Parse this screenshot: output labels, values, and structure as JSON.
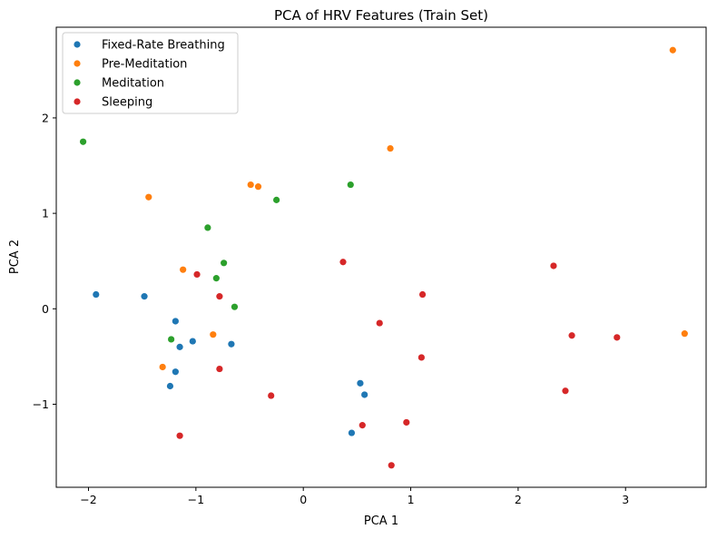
{
  "chart_data": {
    "type": "scatter",
    "title": "PCA of HRV Features (Train Set)",
    "xlabel": "PCA 1",
    "ylabel": "PCA 2",
    "xlim": [
      -2.3,
      3.75
    ],
    "ylim": [
      -1.87,
      2.95
    ],
    "xticks": [
      -2,
      -1,
      0,
      1,
      2,
      3
    ],
    "xtick_labels": [
      "−2",
      "−1",
      "0",
      "1",
      "2",
      "3"
    ],
    "yticks": [
      -1,
      0,
      1,
      2
    ],
    "ytick_labels": [
      "−1",
      "0",
      "1",
      "2"
    ],
    "grid": false,
    "legend_position": "top-left",
    "series": [
      {
        "name": "Fixed-Rate Breathing",
        "color": "#1f77b4",
        "points": [
          [
            -1.93,
            0.15
          ],
          [
            -1.48,
            0.13
          ],
          [
            -1.19,
            -0.13
          ],
          [
            -1.03,
            -0.34
          ],
          [
            -1.15,
            -0.4
          ],
          [
            -0.67,
            -0.37
          ],
          [
            -1.19,
            -0.66
          ],
          [
            -1.24,
            -0.81
          ],
          [
            0.53,
            -0.78
          ],
          [
            0.57,
            -0.9
          ],
          [
            0.45,
            -1.3
          ]
        ]
      },
      {
        "name": "Pre-Meditation",
        "color": "#ff7f0e",
        "points": [
          [
            3.44,
            2.71
          ],
          [
            0.81,
            1.68
          ],
          [
            -1.44,
            1.17
          ],
          [
            -0.49,
            1.3
          ],
          [
            -0.42,
            1.28
          ],
          [
            -1.12,
            0.41
          ],
          [
            -0.84,
            -0.27
          ],
          [
            -1.31,
            -0.61
          ],
          [
            3.55,
            -0.26
          ]
        ]
      },
      {
        "name": "Meditation",
        "color": "#2ca02c",
        "points": [
          [
            -2.05,
            1.75
          ],
          [
            0.44,
            1.3
          ],
          [
            -0.25,
            1.14
          ],
          [
            -0.89,
            0.85
          ],
          [
            -0.74,
            0.48
          ],
          [
            -0.81,
            0.32
          ],
          [
            -0.64,
            0.02
          ],
          [
            -1.23,
            -0.32
          ]
        ]
      },
      {
        "name": "Sleeping",
        "color": "#d62728",
        "points": [
          [
            0.37,
            0.49
          ],
          [
            2.33,
            0.45
          ],
          [
            -0.99,
            0.36
          ],
          [
            -0.78,
            0.13
          ],
          [
            1.11,
            0.15
          ],
          [
            0.71,
            -0.15
          ],
          [
            2.5,
            -0.28
          ],
          [
            2.92,
            -0.3
          ],
          [
            1.1,
            -0.51
          ],
          [
            -0.78,
            -0.63
          ],
          [
            2.44,
            -0.86
          ],
          [
            -0.3,
            -0.91
          ],
          [
            0.96,
            -1.19
          ],
          [
            0.55,
            -1.22
          ],
          [
            -1.15,
            -1.33
          ],
          [
            0.82,
            -1.64
          ]
        ]
      }
    ]
  }
}
